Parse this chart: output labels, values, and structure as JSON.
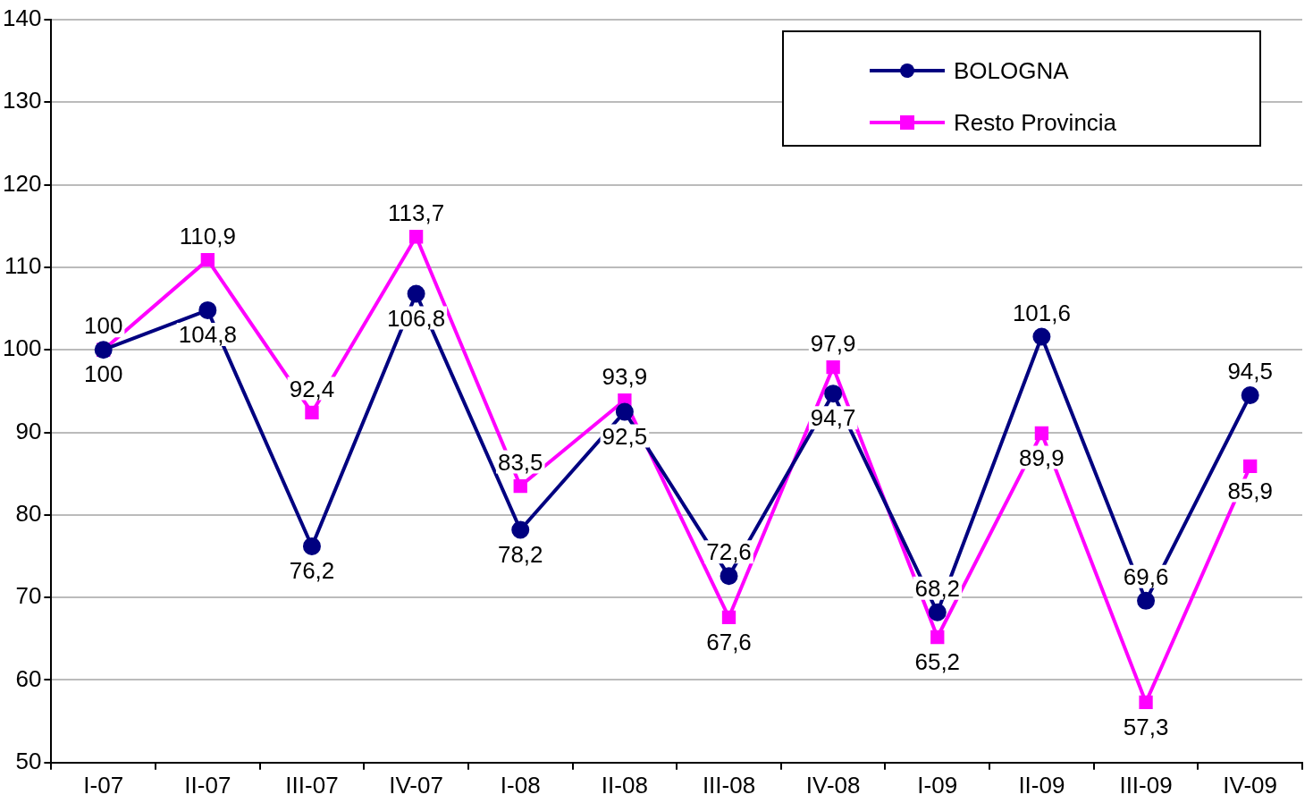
{
  "chart_data": {
    "type": "line",
    "categories": [
      "I-07",
      "II-07",
      "III-07",
      "IV-07",
      "I-08",
      "II-08",
      "III-08",
      "IV-08",
      "I-09",
      "II-09",
      "III-09",
      "IV-09"
    ],
    "series": [
      {
        "name": "BOLOGNA",
        "color": "#000080",
        "marker": "circle",
        "values": [
          100,
          104.8,
          76.2,
          106.8,
          78.2,
          92.5,
          72.6,
          94.7,
          68.2,
          101.6,
          69.6,
          94.5
        ],
        "value_labels": [
          "100",
          "104,8",
          "76,2",
          "106,8",
          "78,2",
          "92,5",
          "72,6",
          "94,7",
          "68,2",
          "101,6",
          "69,6",
          "94,5"
        ]
      },
      {
        "name": "Resto Provincia",
        "color": "#ff00ff",
        "marker": "square",
        "values": [
          100,
          110.9,
          92.4,
          113.7,
          83.5,
          93.9,
          67.6,
          97.9,
          65.2,
          89.9,
          57.3,
          85.9
        ],
        "value_labels": [
          "100",
          "110,9",
          "92,4",
          "113,7",
          "83,5",
          "93,9",
          "67,6",
          "97,9",
          "65,2",
          "89,9",
          "57,3",
          "85,9"
        ]
      }
    ],
    "ylim": [
      50,
      140
    ],
    "yticks": [
      50,
      60,
      70,
      80,
      90,
      100,
      110,
      120,
      130,
      140
    ],
    "grid": "y",
    "legend": "top right",
    "line_style": "solid"
  }
}
